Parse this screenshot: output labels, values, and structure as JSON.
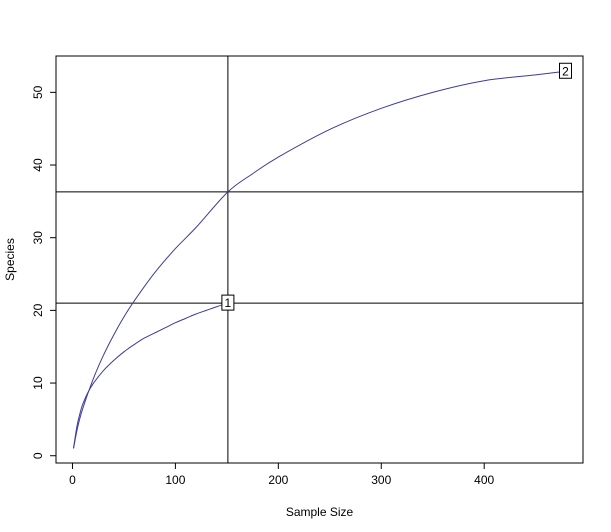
{
  "chart_data": {
    "type": "line",
    "title": "",
    "xlabel": "Sample Size",
    "ylabel": "Species",
    "xlim": [
      -16,
      496
    ],
    "ylim": [
      -1,
      55
    ],
    "xticks": [
      "0",
      "100",
      "200",
      "300",
      "400"
    ],
    "yticks": [
      "0",
      "10",
      "20",
      "30",
      "40",
      "50"
    ],
    "grid": false,
    "legend": "none",
    "series": [
      {
        "label": "1",
        "color": "#3b3b9e",
        "x": [
          1,
          3,
          5,
          8,
          10,
          15,
          20,
          30,
          40,
          50,
          60,
          70,
          80,
          90,
          100,
          110,
          120,
          130,
          140,
          151
        ],
        "y": [
          1,
          2.9,
          4.5,
          6.2,
          7.1,
          8.7,
          9.9,
          11.7,
          13.1,
          14.3,
          15.3,
          16.2,
          16.9,
          17.6,
          18.3,
          18.9,
          19.5,
          20.0,
          20.5,
          21.0
        ]
      },
      {
        "label": "2",
        "color": "#3b3b9e",
        "x": [
          1,
          5,
          10,
          20,
          30,
          40,
          50,
          60,
          80,
          100,
          120,
          151,
          175,
          200,
          250,
          300,
          350,
          400,
          450,
          479
        ],
        "y": [
          1,
          3.9,
          6.5,
          10.5,
          13.8,
          16.6,
          19.1,
          21.3,
          25.2,
          28.5,
          31.4,
          36.3,
          38.8,
          41.1,
          44.9,
          47.8,
          50.0,
          51.6,
          52.4,
          52.9
        ]
      }
    ],
    "reference_lines": {
      "vertical_x": [
        151
      ],
      "horizontal_y": [
        21.0,
        36.3
      ]
    },
    "line_color": "#000000",
    "label_box_color": "#ffffff"
  }
}
